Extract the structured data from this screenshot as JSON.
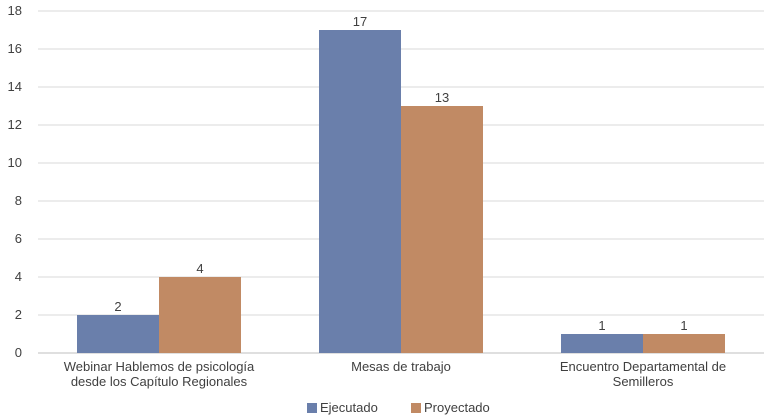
{
  "chart_data": {
    "type": "bar",
    "categories": [
      [
        "Webinar Hablemos de psicología",
        "desde los Capítulo Regionales"
      ],
      [
        "Mesas de trabajo"
      ],
      [
        "Encuentro Departamental de",
        "Semilleros"
      ]
    ],
    "series": [
      {
        "name": "Ejecutado",
        "values": [
          2,
          17,
          1
        ],
        "color": "#6a7fab"
      },
      {
        "name": "Proyectado",
        "values": [
          4,
          13,
          1
        ],
        "color": "#c18a64"
      }
    ],
    "ylim": [
      0,
      18
    ],
    "yticks": [
      0,
      2,
      4,
      6,
      8,
      10,
      12,
      14,
      16,
      18
    ],
    "grid": true,
    "legend_position": "bottom",
    "title": "",
    "xlabel": "",
    "ylabel": ""
  }
}
